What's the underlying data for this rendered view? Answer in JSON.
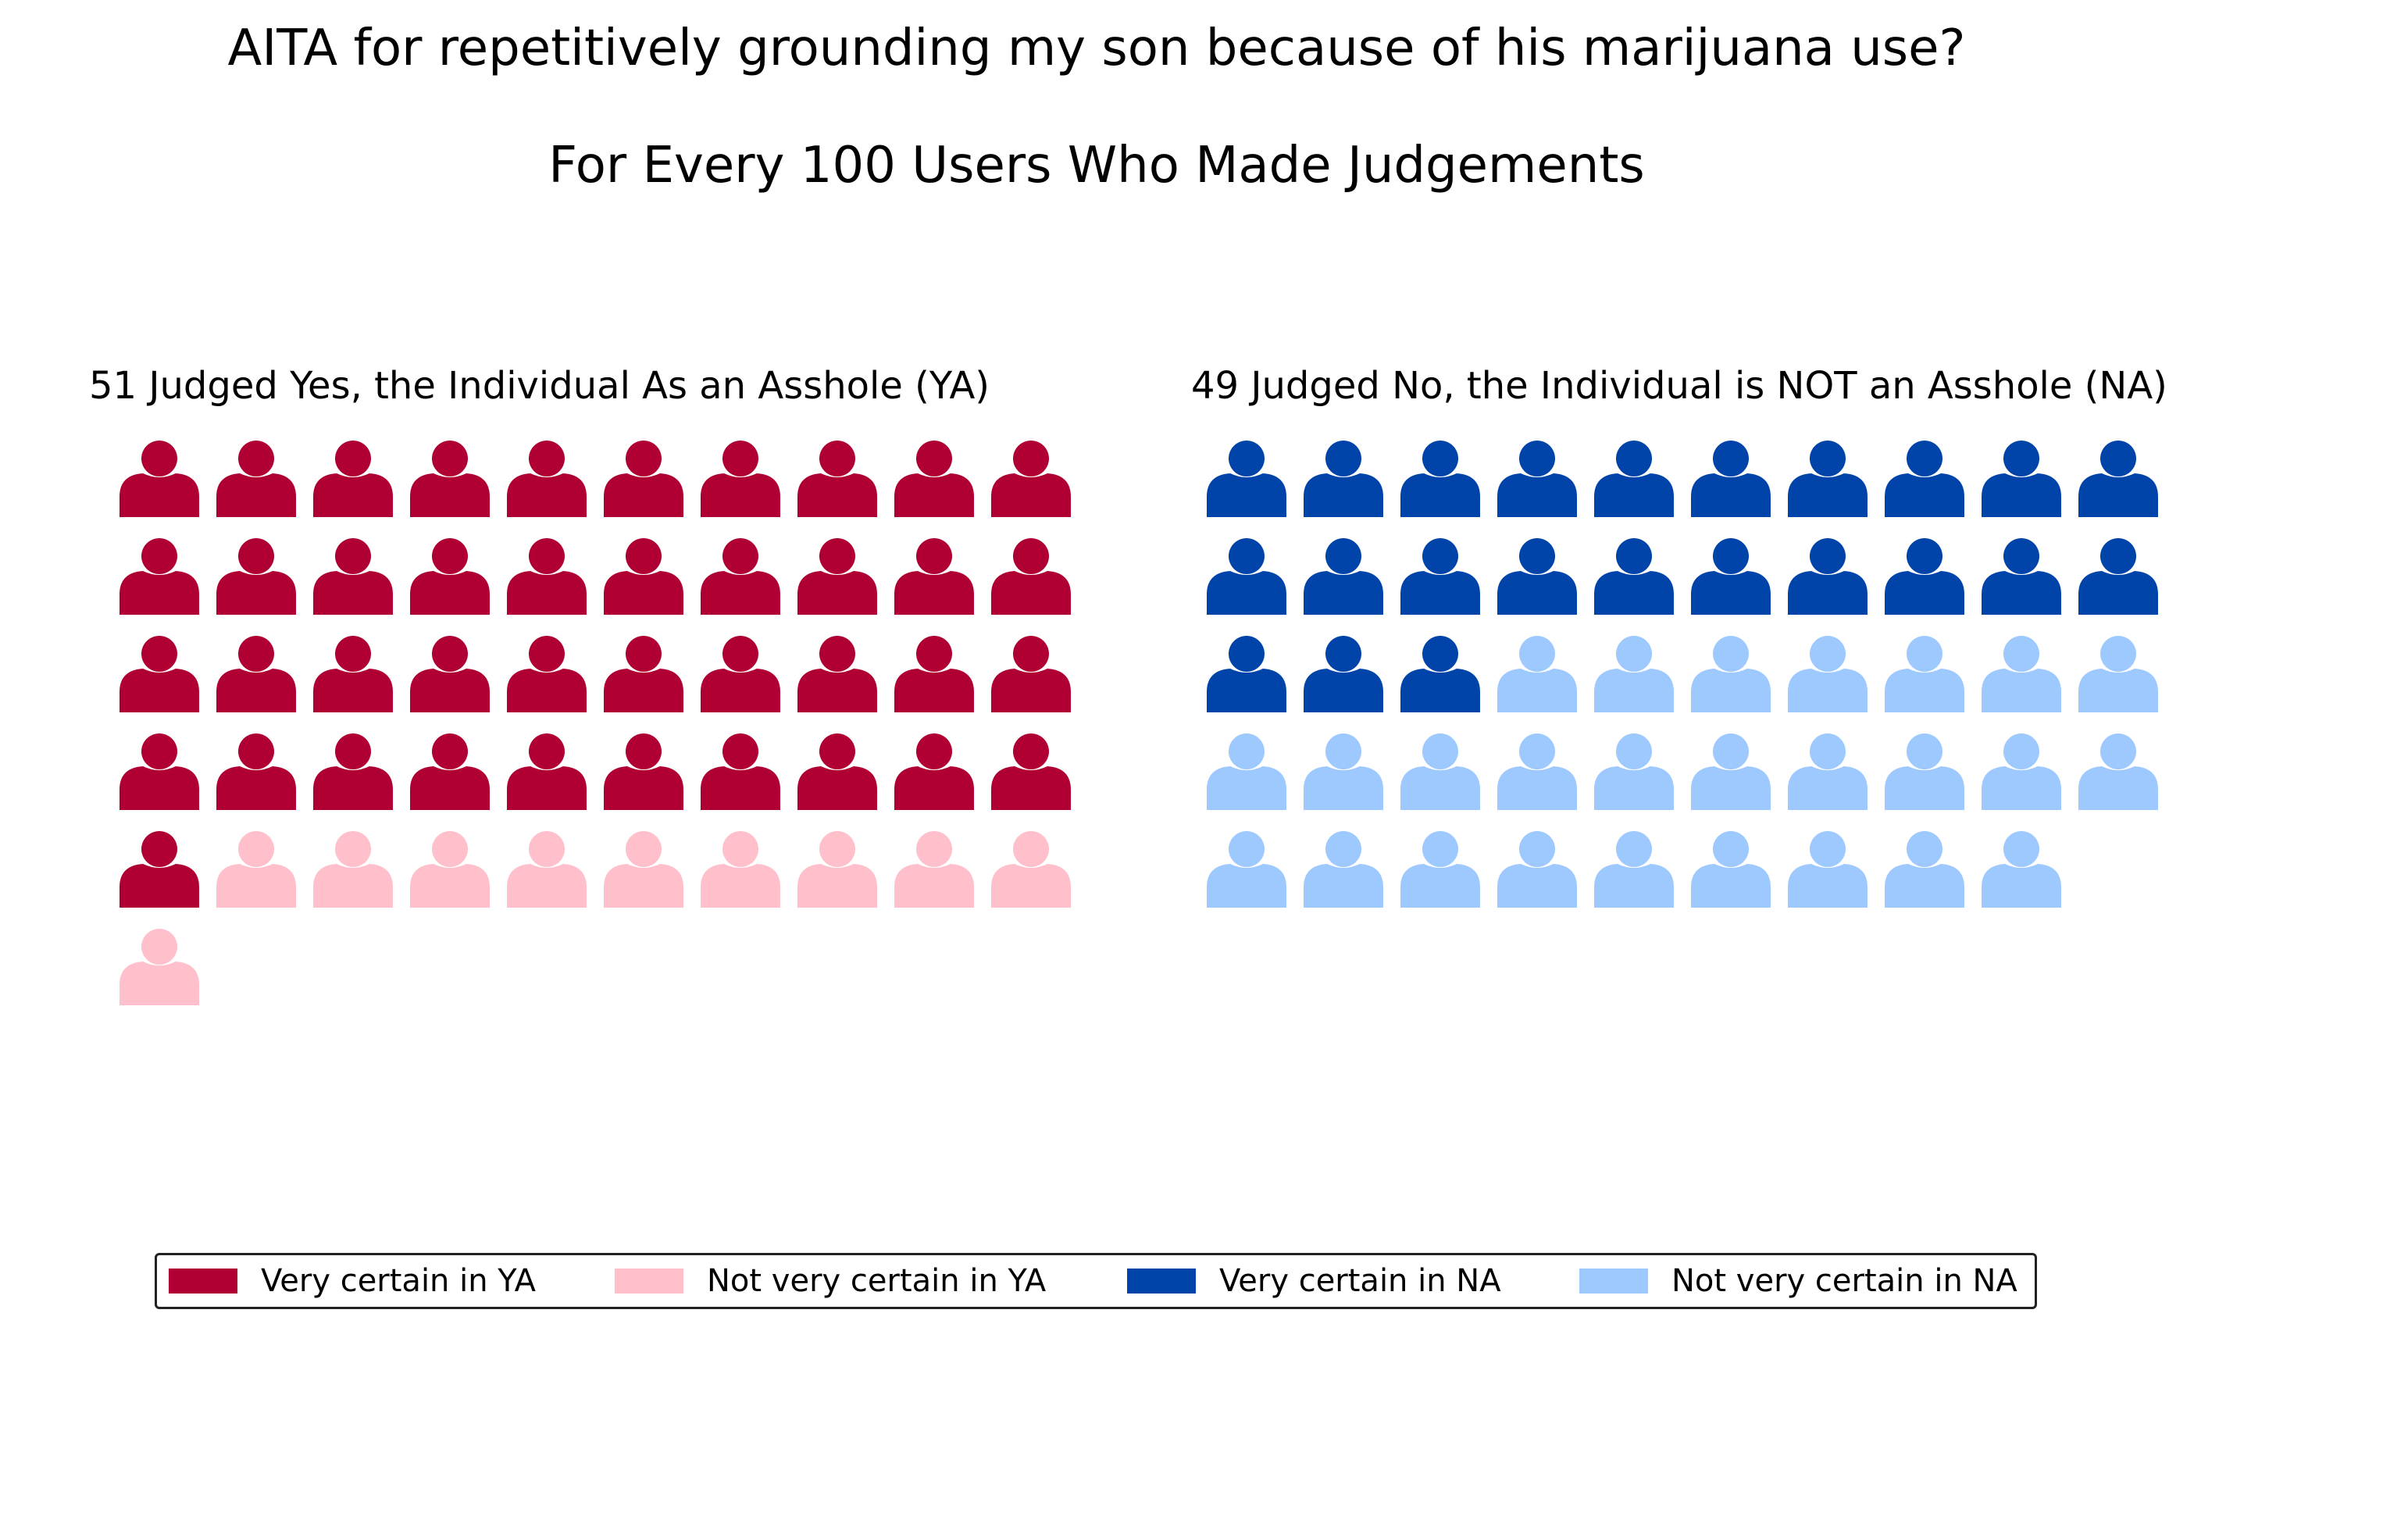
{
  "chart_data": {
    "type": "pictogram",
    "title": "AITA for repetitively grounding my son because of his marijuana use?",
    "subtitle": "For Every 100 Users Who Made Judgements",
    "panels": [
      {
        "label": "51 Judged Yes, the Individual As an Asshole (YA)",
        "total": 51,
        "groups": [
          {
            "name": "Very certain in YA",
            "count": 41,
            "color": "#b00033"
          },
          {
            "name": "Not very certain in YA",
            "count": 10,
            "color": "#ffc0cb"
          }
        ]
      },
      {
        "label": "49 Judged No, the Individual is NOT an Asshole (NA)",
        "total": 49,
        "groups": [
          {
            "name": "Very certain in NA",
            "count": 23,
            "color": "#0044aa"
          },
          {
            "name": "Not very certain in NA",
            "count": 26,
            "color": "#9ec9ff"
          }
        ]
      }
    ],
    "icons_per_row": 10,
    "legend": {
      "placement": "bottom",
      "items": [
        {
          "label": "Very certain in YA",
          "color": "#b00033"
        },
        {
          "label": "Not very certain in YA",
          "color": "#ffc0cb"
        },
        {
          "label": "Very certain in NA",
          "color": "#0044aa"
        },
        {
          "label": "Not very certain in NA",
          "color": "#9ec9ff"
        }
      ]
    }
  }
}
